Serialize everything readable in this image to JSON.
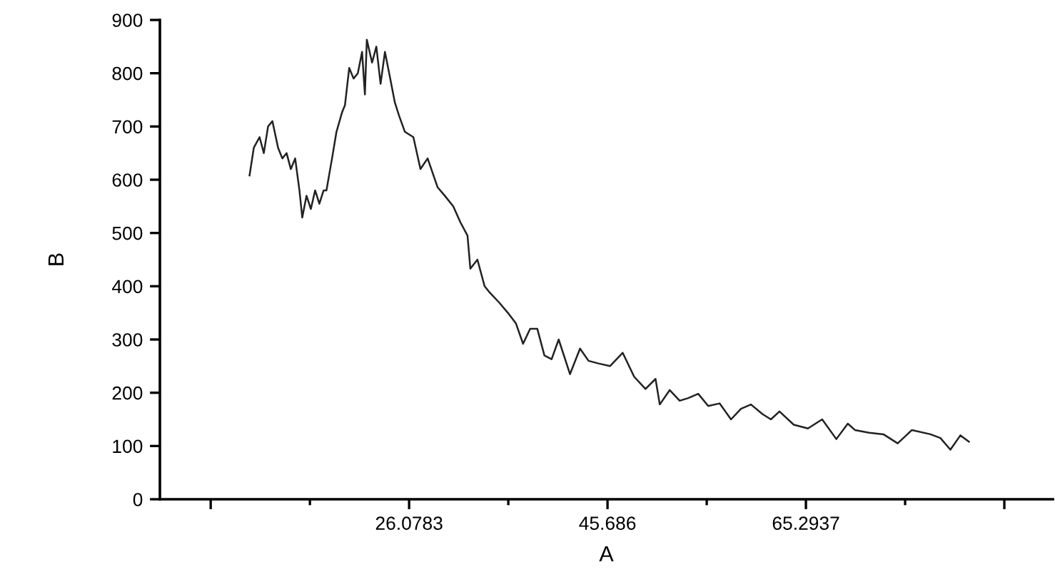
{
  "chart_data": {
    "type": "line",
    "xlabel": "A",
    "ylabel": "B",
    "xlim": [
      1.45,
      89.7
    ],
    "xticks": [
      {
        "value": 6.4706,
        "label": null
      },
      26.0783,
      45.686,
      65.2937,
      {
        "value": 84.9014,
        "label": null
      }
    ],
    "ylim": [
      0,
      900
    ],
    "yticks": [
      0,
      100,
      200,
      300,
      400,
      500,
      600,
      700,
      800,
      900
    ],
    "grid": false,
    "legend": false,
    "marker": "none",
    "line_style": "solid",
    "series": [
      {
        "color": "#222222",
        "x": [
          10.31,
          10.73,
          11.3,
          11.72,
          12.14,
          12.57,
          13.13,
          13.55,
          13.97,
          14.39,
          14.82,
          15.24,
          15.52,
          15.94,
          16.37,
          16.79,
          17.21,
          17.63,
          17.91,
          18.48,
          18.9,
          19.46,
          19.74,
          20.16,
          20.59,
          21.01,
          21.43,
          21.71,
          21.9,
          22.42,
          22.84,
          23.26,
          23.69,
          24.11,
          24.67,
          25.09,
          25.66,
          26.5,
          27.2,
          27.91,
          28.89,
          29.6,
          30.44,
          31.15,
          31.85,
          32.13,
          32.83,
          33.54,
          33.96,
          34.95,
          35.93,
          36.64,
          37.34,
          38.04,
          38.75,
          39.45,
          40.16,
          40.86,
          41.98,
          42.97,
          43.81,
          44.8,
          45.93,
          47.19,
          48.32,
          49.44,
          50.43,
          50.85,
          51.83,
          52.82,
          53.67,
          54.65,
          55.64,
          56.76,
          57.89,
          58.88,
          59.86,
          60.99,
          61.83,
          62.68,
          64.09,
          65.49,
          66.9,
          68.3,
          69.43,
          70.14,
          71.54,
          72.95,
          74.36,
          75.77,
          77.6,
          78.58,
          79.57,
          80.56,
          81.4
        ],
        "values": [
          608,
          660,
          680,
          650,
          700,
          710,
          660,
          640,
          650,
          620,
          640,
          580,
          529,
          570,
          545,
          580,
          555,
          580,
          580,
          642,
          690,
          727,
          740,
          810,
          790,
          800,
          840,
          760,
          863,
          820,
          850,
          780,
          840,
          800,
          745,
          720,
          690,
          680,
          620,
          640,
          586,
          570,
          550,
          520,
          495,
          433,
          450,
          400,
          390,
          370,
          348,
          330,
          292,
          320,
          320,
          270,
          263,
          300,
          235,
          283,
          260,
          255,
          250,
          275,
          230,
          207,
          226,
          178,
          205,
          185,
          190,
          198,
          175,
          180,
          150,
          170,
          178,
          160,
          150,
          165,
          140,
          133,
          150,
          113,
          142,
          130,
          125,
          122,
          105,
          130,
          122,
          115,
          93,
          120,
          108
        ]
      }
    ]
  }
}
